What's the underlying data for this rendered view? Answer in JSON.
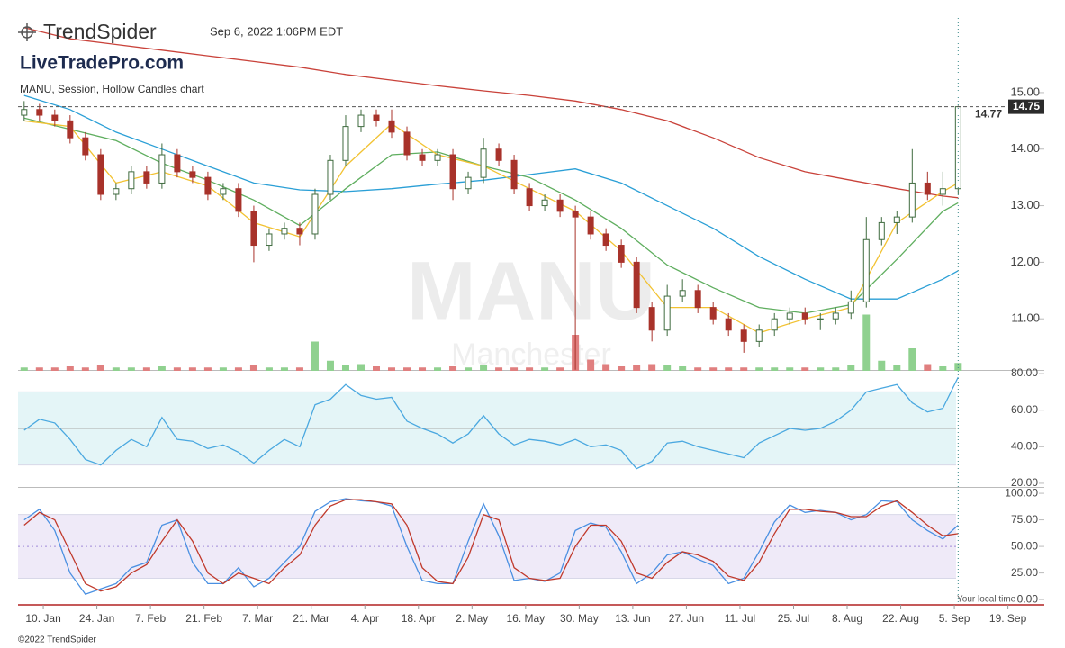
{
  "header": {
    "brand": "TrendSpider",
    "timestamp": "Sep 6, 2022 1:06PM EDT",
    "watermark": "LiveTradePro.com",
    "chart_label": "MANU, Session, Hollow Candles chart",
    "symbol_watermark": "MANU",
    "name_watermark": "Manchester",
    "local_time": "Your local time",
    "footer": "©2022 TrendSpider"
  },
  "chart_data": {
    "type": "candlestick",
    "x": [
      5,
      9,
      13,
      17,
      21,
      25,
      29,
      33,
      37,
      41,
      45,
      49,
      53,
      57,
      61,
      65,
      69,
      73,
      77,
      81,
      85,
      89,
      93,
      97,
      101,
      105,
      109,
      113,
      117,
      121,
      125,
      129,
      133,
      137,
      141,
      145,
      149,
      153,
      157,
      161,
      165,
      169,
      173,
      177,
      181,
      185,
      189,
      193,
      197,
      201,
      205,
      209,
      213,
      217,
      221,
      225,
      229,
      233,
      237,
      241,
      245,
      249
    ],
    "open": [
      14.6,
      14.7,
      14.6,
      14.5,
      14.2,
      13.9,
      13.2,
      13.3,
      13.6,
      13.4,
      13.9,
      13.6,
      13.5,
      13.2,
      13.3,
      12.9,
      12.3,
      12.5,
      12.6,
      12.5,
      13.2,
      13.8,
      14.4,
      14.6,
      14.5,
      14.3,
      13.9,
      13.8,
      13.9,
      13.3,
      13.5,
      14.0,
      13.8,
      13.3,
      13.0,
      13.1,
      12.9,
      12.8,
      12.5,
      12.3,
      12.0,
      11.2,
      10.8,
      11.4,
      11.5,
      11.2,
      11.0,
      10.8,
      10.6,
      10.8,
      11.0,
      11.1,
      11.0,
      11.0,
      11.1,
      11.3,
      12.4,
      12.7,
      12.8,
      13.4,
      13.2,
      13.3
    ],
    "high": [
      14.85,
      14.8,
      14.7,
      14.6,
      14.3,
      14.0,
      13.4,
      13.7,
      13.7,
      14.1,
      14.0,
      13.7,
      13.6,
      13.4,
      13.4,
      13.0,
      12.6,
      12.7,
      12.7,
      13.3,
      13.9,
      14.6,
      14.7,
      14.7,
      14.7,
      14.4,
      14.0,
      14.0,
      14.0,
      13.6,
      14.2,
      14.1,
      13.9,
      13.4,
      13.2,
      13.2,
      13.0,
      12.9,
      12.6,
      12.4,
      12.1,
      11.3,
      11.6,
      11.7,
      11.6,
      11.3,
      11.1,
      10.9,
      10.9,
      11.1,
      11.2,
      11.2,
      11.1,
      11.2,
      11.5,
      12.8,
      12.8,
      12.9,
      14.0,
      13.6,
      13.6,
      14.77
    ],
    "low": [
      14.5,
      14.5,
      14.4,
      14.1,
      13.8,
      13.1,
      13.1,
      13.2,
      13.3,
      13.3,
      13.5,
      13.4,
      13.1,
      13.1,
      12.8,
      12.0,
      12.2,
      12.4,
      12.3,
      12.4,
      13.1,
      13.7,
      14.3,
      14.4,
      14.2,
      13.8,
      13.7,
      13.7,
      13.1,
      13.2,
      13.4,
      13.7,
      13.2,
      12.9,
      12.9,
      12.8,
      10.1,
      12.4,
      12.2,
      11.9,
      11.1,
      10.6,
      10.7,
      11.3,
      11.1,
      10.9,
      10.7,
      10.4,
      10.5,
      10.7,
      10.9,
      10.9,
      10.8,
      10.9,
      11.0,
      11.2,
      12.3,
      12.5,
      12.7,
      13.1,
      13.0,
      13.2
    ],
    "close": [
      14.7,
      14.6,
      14.5,
      14.2,
      13.9,
      13.2,
      13.3,
      13.6,
      13.4,
      13.9,
      13.6,
      13.5,
      13.2,
      13.3,
      12.9,
      12.3,
      12.5,
      12.6,
      12.5,
      13.2,
      13.8,
      14.4,
      14.6,
      14.5,
      14.3,
      13.9,
      13.8,
      13.9,
      13.3,
      13.5,
      14.0,
      13.8,
      13.3,
      13.0,
      13.1,
      12.9,
      12.8,
      12.5,
      12.3,
      12.0,
      11.2,
      10.8,
      11.4,
      11.5,
      11.2,
      11.0,
      10.8,
      10.6,
      10.8,
      11.0,
      11.1,
      11.0,
      11.0,
      11.1,
      11.3,
      12.4,
      12.7,
      12.8,
      13.4,
      13.2,
      13.3,
      14.75
    ],
    "up_color": "#3f6b3f",
    "down_color": "#a8322a",
    "volume": [
      0.3,
      0.3,
      0.3,
      0.4,
      0.3,
      0.5,
      0.3,
      0.3,
      0.3,
      0.4,
      0.3,
      0.3,
      0.3,
      0.3,
      0.3,
      0.5,
      0.3,
      0.3,
      0.3,
      2.6,
      0.9,
      0.5,
      0.6,
      0.4,
      0.3,
      0.3,
      0.3,
      0.3,
      0.4,
      0.3,
      0.5,
      0.3,
      0.3,
      0.3,
      0.3,
      0.3,
      3.2,
      1.0,
      0.6,
      0.4,
      0.5,
      0.6,
      0.5,
      0.4,
      0.3,
      0.3,
      0.3,
      0.3,
      0.3,
      0.3,
      0.3,
      0.3,
      0.3,
      0.3,
      0.5,
      5.0,
      0.9,
      0.5,
      2.0,
      0.6,
      0.4,
      0.7
    ],
    "volume_ylim": [
      0,
      8
    ],
    "volume_up_color": "#8fd18f",
    "volume_down_color": "#e07f7f",
    "xlim": [
      3.4,
      271.5
    ],
    "xticks": [
      {
        "value": 10,
        "label": "10. Jan"
      },
      {
        "value": 24,
        "label": "24. Jan"
      },
      {
        "value": 38,
        "label": "7. Feb"
      },
      {
        "value": 52,
        "label": "21. Feb"
      },
      {
        "value": 66,
        "label": "7. Mar"
      },
      {
        "value": 80,
        "label": "21. Mar"
      },
      {
        "value": 94,
        "label": "4. Apr"
      },
      {
        "value": 108,
        "label": "18. Apr"
      },
      {
        "value": 122,
        "label": "2. May"
      },
      {
        "value": 136,
        "label": "16. May"
      },
      {
        "value": 150,
        "label": "30. May"
      },
      {
        "value": 164,
        "label": "13. Jun"
      },
      {
        "value": 178,
        "label": "27. Jun"
      },
      {
        "value": 192,
        "label": "11. Jul"
      },
      {
        "value": 206,
        "label": "25. Jul"
      },
      {
        "value": 220,
        "label": "8. Aug"
      },
      {
        "value": 234,
        "label": "22. Aug"
      },
      {
        "value": 248,
        "label": "5. Sep"
      },
      {
        "value": 262,
        "label": "19. Sep"
      }
    ],
    "ylim": [
      10.08,
      16.32
    ],
    "yticks": [
      {
        "value": 15,
        "label": "15.00"
      },
      {
        "value": 14,
        "label": "14.00"
      },
      {
        "value": 13,
        "label": "13.00"
      },
      {
        "value": 12,
        "label": "12.00"
      },
      {
        "value": 11,
        "label": "11.00"
      }
    ],
    "last_price": 14.75,
    "high_marker": 14.77,
    "overlays": {
      "x": [
        5,
        17,
        29,
        41,
        53,
        65,
        77,
        89,
        101,
        113,
        125,
        137,
        149,
        161,
        173,
        185,
        197,
        209,
        221,
        233,
        245,
        249
      ],
      "series": [
        {
          "color": "#c9423a",
          "values": [
            16.15,
            15.95,
            15.85,
            15.75,
            15.65,
            15.55,
            15.45,
            15.32,
            15.22,
            15.12,
            15.03,
            14.95,
            14.85,
            14.7,
            14.5,
            14.2,
            13.85,
            13.6,
            13.45,
            13.3,
            13.17,
            13.14
          ]
        },
        {
          "color": "#2a9fd6",
          "values": [
            14.95,
            14.7,
            14.3,
            14.0,
            13.7,
            13.4,
            13.28,
            13.25,
            13.3,
            13.38,
            13.45,
            13.55,
            13.65,
            13.4,
            13.0,
            12.6,
            12.1,
            11.7,
            11.35,
            11.35,
            11.7,
            11.85
          ]
        },
        {
          "color": "#5fae5f",
          "values": [
            14.55,
            14.35,
            14.15,
            13.75,
            13.45,
            13.1,
            12.65,
            13.3,
            13.9,
            13.95,
            13.7,
            13.5,
            13.1,
            12.6,
            11.95,
            11.55,
            11.2,
            11.1,
            11.25,
            12.05,
            12.9,
            13.05
          ]
        },
        {
          "color": "#f2c232",
          "values": [
            14.5,
            14.4,
            13.4,
            13.6,
            13.35,
            12.7,
            12.45,
            13.7,
            14.45,
            13.9,
            13.7,
            13.3,
            12.9,
            12.2,
            11.2,
            11.2,
            10.75,
            11.0,
            11.2,
            12.7,
            13.25,
            13.4
          ]
        }
      ]
    },
    "panels": [
      {
        "type": "line",
        "ylim": [
          18,
          81.5
        ],
        "yticks": [
          {
            "value": 80,
            "label": "80.00"
          },
          {
            "value": 60,
            "label": "60.00"
          },
          {
            "value": 40,
            "label": "40.00"
          },
          {
            "value": 20,
            "label": "20.00"
          }
        ],
        "band": [
          30,
          70
        ],
        "band_color": "#e4f5f7",
        "midline": 50,
        "series": [
          {
            "color": "#4aa8e0",
            "values": [
              49,
              55,
              53,
              44,
              33,
              30,
              38,
              44,
              40,
              56,
              44,
              43,
              39,
              41,
              37,
              31,
              38,
              44,
              40,
              63,
              66,
              74,
              68,
              66,
              67,
              54,
              50,
              47,
              42,
              47,
              57,
              47,
              41,
              44,
              43,
              41,
              44,
              40,
              41,
              38,
              28,
              32,
              42,
              43,
              40,
              38,
              36,
              34,
              42,
              46,
              50,
              49,
              50,
              54,
              60,
              70,
              72,
              74,
              64,
              59,
              61,
              78
            ]
          }
        ]
      },
      {
        "type": "line",
        "ylim": [
          -5,
          106
        ],
        "yticks": [
          {
            "value": 100,
            "label": "100.00"
          },
          {
            "value": 75,
            "label": "75.00"
          },
          {
            "value": 50,
            "label": "50.00"
          },
          {
            "value": 25,
            "label": "25.00"
          },
          {
            "value": 0,
            "label": "0.00"
          }
        ],
        "band": [
          20,
          80
        ],
        "band_color": "#efeaf8",
        "midline": 50,
        "series": [
          {
            "color": "#4a90e2",
            "values": [
              75,
              85,
              65,
              25,
              5,
              10,
              15,
              30,
              35,
              70,
              75,
              35,
              15,
              15,
              30,
              12,
              20,
              35,
              50,
              83,
              92,
              95,
              93,
              92,
              88,
              50,
              18,
              15,
              15,
              55,
              90,
              60,
              18,
              20,
              17,
              25,
              65,
              72,
              68,
              45,
              15,
              25,
              42,
              45,
              38,
              32,
              15,
              20,
              45,
              73,
              89,
              82,
              84,
              82,
              75,
              80,
              93,
              92,
              75,
              65,
              57,
              70
            ]
          },
          {
            "color": "#c0392b",
            "values": [
              70,
              82,
              75,
              45,
              15,
              8,
              12,
              25,
              33,
              55,
              75,
              55,
              25,
              15,
              25,
              20,
              15,
              30,
              42,
              70,
              88,
              94,
              94,
              92,
              90,
              70,
              30,
              17,
              15,
              40,
              80,
              75,
              30,
              20,
              18,
              20,
              50,
              70,
              70,
              55,
              25,
              20,
              35,
              45,
              42,
              36,
              22,
              18,
              35,
              62,
              85,
              85,
              83,
              82,
              78,
              78,
              88,
              93,
              82,
              70,
              60,
              62
            ]
          }
        ]
      }
    ]
  }
}
